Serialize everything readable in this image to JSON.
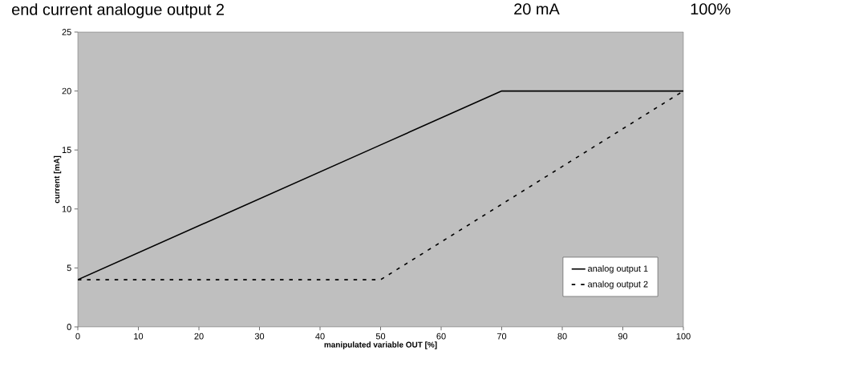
{
  "chart_data": {
    "type": "line",
    "xlabel": "manipulated variable OUT [%]",
    "ylabel": "current [mA]",
    "annotations": [
      "end current analogue output 2",
      "20 mA",
      "100%"
    ],
    "x": [
      0,
      50,
      70,
      100
    ],
    "series": [
      {
        "name": "analog output 1",
        "color": "#000000",
        "line_style": "solid",
        "values": [
          4,
          15.43,
          20,
          20
        ]
      },
      {
        "name": "analog output 2",
        "color": "#000000",
        "line_style": "dashed",
        "values": [
          4,
          4,
          10.4,
          20
        ]
      }
    ],
    "xlim": [
      0,
      100
    ],
    "ylim": [
      0,
      25
    ],
    "xticks": [
      0,
      10,
      20,
      30,
      40,
      50,
      60,
      70,
      80,
      90,
      100
    ],
    "yticks": [
      0,
      5,
      10,
      15,
      20,
      25
    ],
    "legend": "bottom right",
    "marker": "none",
    "grid": false
  }
}
